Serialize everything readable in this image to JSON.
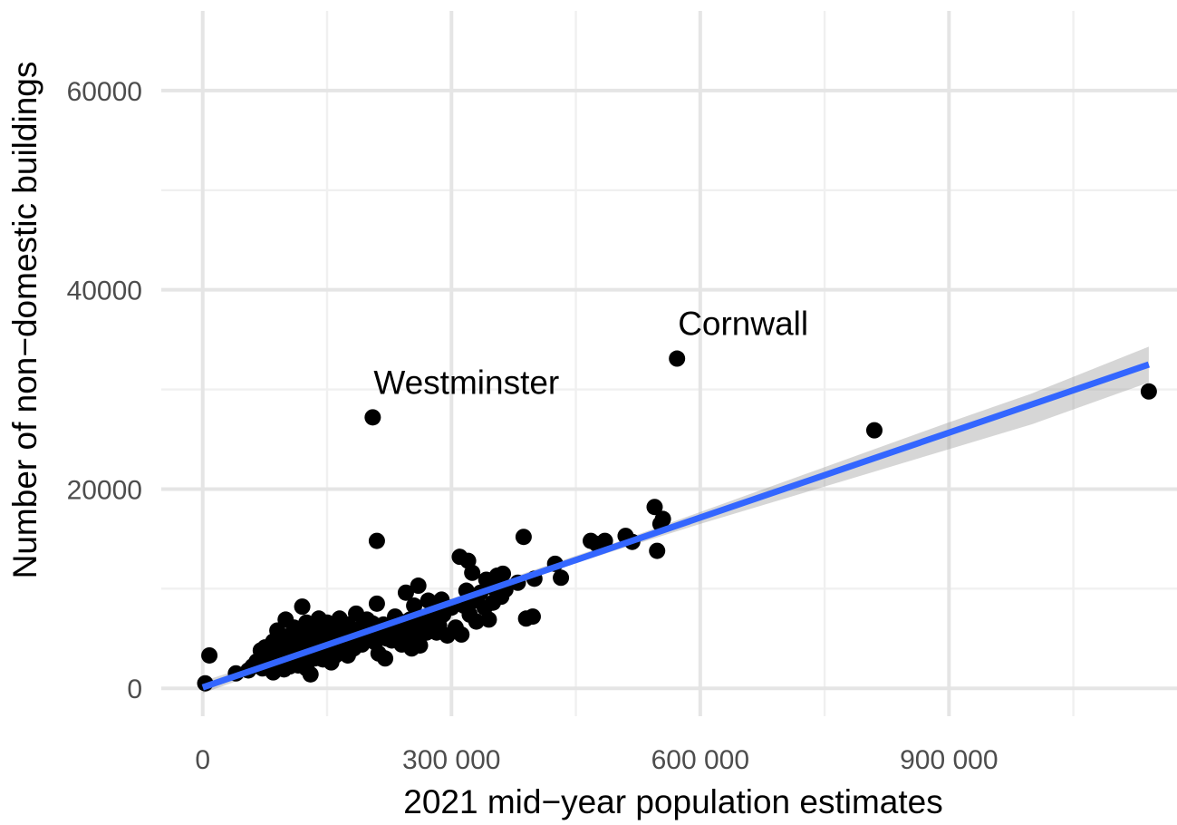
{
  "chart_data": {
    "type": "scatter",
    "title": "",
    "xlabel": "2021 mid−year population estimates",
    "ylabel": "Number of non−domestic buildings",
    "xlim": [
      -50000,
      1175000
    ],
    "ylim": [
      -2800,
      68000
    ],
    "x_ticks": [
      0,
      300000,
      600000,
      900000
    ],
    "x_tick_labels": [
      "0",
      "300 000",
      "600 000",
      "900 000"
    ],
    "x_minor_ticks": [
      150000,
      450000,
      750000,
      1050000
    ],
    "y_ticks": [
      0,
      20000,
      40000,
      60000
    ],
    "y_tick_labels": [
      "0",
      "20000",
      "40000",
      "60000"
    ],
    "y_minor_ticks": [
      10000,
      30000,
      50000
    ],
    "grid": true,
    "point_color": "#000000",
    "fit_line_color": "#3366ff",
    "ribbon_color": "#999999",
    "annotations": [
      {
        "text": "Westminster",
        "x": 205000,
        "y": 27200
      },
      {
        "text": "Cornwall",
        "x": 572000,
        "y": 33100
      }
    ],
    "fit_line": {
      "x": [
        0,
        1141000
      ],
      "y": [
        100,
        32500
      ]
    },
    "ribbon": {
      "x": [
        0,
        100000,
        200000,
        300000,
        400000,
        500000,
        600000,
        700000,
        800000,
        900000,
        1000000,
        1141000
      ],
      "lower": [
        -500,
        2500,
        5500,
        8400,
        11200,
        13900,
        16500,
        19000,
        21500,
        24000,
        26500,
        30700
      ],
      "upper": [
        700,
        3400,
        6200,
        9000,
        11900,
        14700,
        17700,
        20700,
        23700,
        26700,
        29600,
        34300
      ]
    },
    "series": [
      {
        "x": [
          3000,
          8000,
          40000,
          55000,
          60000,
          65000,
          70000,
          70000,
          72000,
          75000,
          78000,
          80000,
          82000,
          85000,
          85000,
          88000,
          90000,
          92000,
          95000,
          95000,
          98000,
          100000,
          100000,
          102000,
          105000,
          105000,
          108000,
          110000,
          110000,
          112000,
          115000,
          115000,
          118000,
          120000,
          120000,
          122000,
          125000,
          125000,
          128000,
          130000,
          130000,
          132000,
          135000,
          135000,
          138000,
          140000,
          140000,
          142000,
          145000,
          145000,
          148000,
          150000,
          150000,
          152000,
          155000,
          155000,
          158000,
          160000,
          160000,
          162000,
          165000,
          165000,
          168000,
          170000,
          172000,
          175000,
          175000,
          178000,
          180000,
          182000,
          185000,
          188000,
          190000,
          192000,
          195000,
          198000,
          200000,
          205000,
          208000,
          210000,
          212000,
          215000,
          218000,
          220000,
          222000,
          225000,
          228000,
          230000,
          232000,
          235000,
          238000,
          240000,
          242000,
          245000,
          248000,
          250000,
          252000,
          255000,
          258000,
          260000,
          262000,
          265000,
          268000,
          270000,
          272000,
          275000,
          278000,
          280000,
          282000,
          285000,
          288000,
          290000,
          295000,
          300000,
          305000,
          310000,
          312000,
          315000,
          318000,
          320000,
          322000,
          325000,
          328000,
          330000,
          335000,
          340000,
          342000,
          345000,
          350000,
          352000,
          355000,
          360000,
          362000,
          365000,
          380000,
          387000,
          390000,
          398000,
          400000,
          425000,
          432000,
          468000,
          475000,
          485000,
          510000,
          518000,
          545000,
          548000,
          552000,
          555000,
          572000,
          810000,
          1141000,
          210000,
          205000,
          100000,
          125000,
          260000
        ],
        "y": [
          500,
          3300,
          1500,
          1800,
          2200,
          2700,
          3100,
          3800,
          2000,
          4100,
          3500,
          2600,
          3300,
          1600,
          4700,
          2200,
          5800,
          3200,
          2500,
          4400,
          1900,
          3800,
          6900,
          5200,
          2200,
          3500,
          4600,
          2700,
          6100,
          3900,
          4800,
          2300,
          5500,
          3300,
          8200,
          4200,
          2500,
          6600,
          3600,
          1400,
          5000,
          4400,
          3000,
          6200,
          4600,
          3400,
          7000,
          5400,
          2900,
          6000,
          4300,
          3700,
          6600,
          5100,
          2600,
          5800,
          4200,
          3300,
          6200,
          5500,
          3800,
          7000,
          5000,
          4500,
          5800,
          3300,
          6400,
          4700,
          5500,
          4000,
          7500,
          5200,
          6000,
          4400,
          5600,
          6900,
          5900,
          6500,
          4600,
          8500,
          3500,
          5700,
          6400,
          3000,
          5000,
          6200,
          4800,
          5600,
          7200,
          5300,
          6700,
          4400,
          6100,
          9600,
          5200,
          6900,
          4000,
          8300,
          5600,
          10300,
          4300,
          7000,
          6300,
          5600,
          8800,
          6500,
          6900,
          7500,
          5600,
          6300,
          8900,
          7400,
          5300,
          8100,
          6100,
          13200,
          5400,
          8300,
          9800,
          12800,
          7400,
          11600,
          8800,
          6700,
          9600,
          8100,
          10900,
          6900,
          8600,
          10000,
          11300,
          9200,
          11500,
          9900,
          10600,
          15200,
          7000,
          7200,
          11000,
          12500,
          11100,
          14800,
          14500,
          14800,
          15300,
          14700,
          18200,
          13800,
          16500,
          17000,
          33100,
          25900,
          29800,
          14800,
          27200,
          4000,
          2000,
          6000
        ]
      }
    ]
  }
}
